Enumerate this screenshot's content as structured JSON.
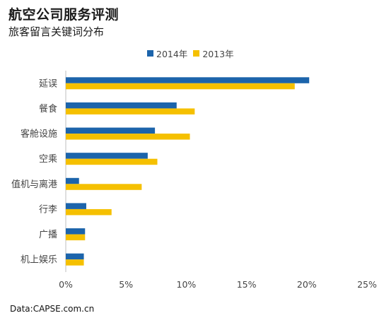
{
  "header": {
    "title": "航空公司服务评测",
    "subtitle": "旅客留言关键词分布"
  },
  "source": "Data:CAPSE.com.cn",
  "colors": {
    "s2014": "#1c64ab",
    "s2013": "#f5c000",
    "axis": "#bfbfbf",
    "text": "#444444"
  },
  "chart_data": {
    "type": "bar",
    "orientation": "horizontal",
    "categories": [
      "延误",
      "餐食",
      "客舱设施",
      "空乘",
      "值机与离港",
      "行李",
      "广播",
      "机上娱乐"
    ],
    "series": [
      {
        "name": "2014年",
        "values": [
          20.2,
          9.2,
          7.4,
          6.8,
          1.1,
          1.7,
          1.6,
          1.5
        ]
      },
      {
        "name": "2013年",
        "values": [
          19.0,
          10.7,
          10.3,
          7.6,
          6.3,
          3.8,
          1.6,
          1.5
        ]
      }
    ],
    "x_ticks": [
      "0%",
      "5%",
      "10%",
      "15%",
      "20%",
      "25%"
    ],
    "xlim": [
      0,
      25
    ],
    "legend_position": "top"
  }
}
